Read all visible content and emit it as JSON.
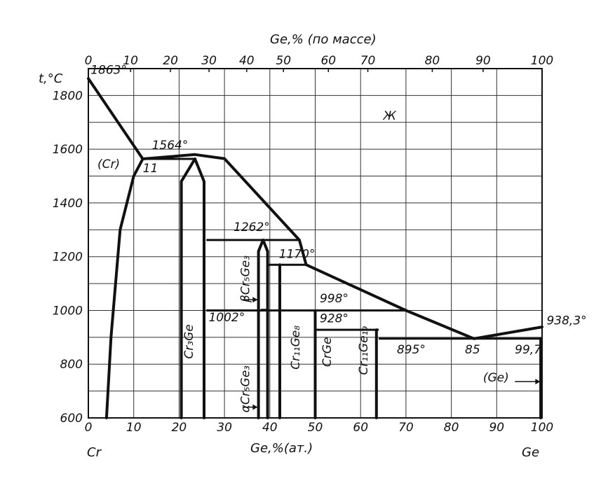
{
  "chart_data": {
    "type": "phase-diagram",
    "title": "",
    "x_bottom_label": "Ge,%(ат.)",
    "x_top_label": "Ge,% (по массе)",
    "y_label": "t,°C",
    "left_component": "Cr",
    "right_component": "Ge",
    "xlim": [
      0,
      100
    ],
    "ylim": [
      600,
      1900
    ],
    "grid": true,
    "bottom_ticks": [
      "0",
      "10",
      "20",
      "30",
      "40",
      "50",
      "60",
      "70",
      "80",
      "90",
      "100"
    ],
    "y_ticks": [
      600,
      800,
      1000,
      1200,
      1400,
      1600,
      1800
    ],
    "top_ticks": [
      {
        "label": "0",
        "at_percent": 0
      },
      {
        "label": "10",
        "at_percent": 9.3
      },
      {
        "label": "20",
        "at_percent": 18.1
      },
      {
        "label": "30",
        "at_percent": 26.6
      },
      {
        "label": "40",
        "at_percent": 34.9
      },
      {
        "label": "50",
        "at_percent": 43.0
      },
      {
        "label": "60",
        "at_percent": 52.9
      },
      {
        "label": "70",
        "at_percent": 61.6
      },
      {
        "label": "80",
        "at_percent": 75.8
      },
      {
        "label": "90",
        "at_percent": 87.0
      },
      {
        "label": "100",
        "at_percent": 100
      }
    ],
    "liquidus": [
      [
        0,
        1863
      ],
      [
        12,
        1564
      ],
      [
        23.5,
        1580
      ],
      [
        30,
        1565
      ],
      [
        46.5,
        1262
      ],
      [
        48,
        1170
      ],
      [
        70,
        1000
      ],
      [
        85,
        895
      ],
      [
        100,
        938.3
      ]
    ],
    "phase_boundaries": {
      "cr_solvus": [
        [
          4,
          600
        ],
        [
          5,
          900
        ],
        [
          7,
          1300
        ],
        [
          10,
          1500
        ],
        [
          12,
          1564
        ]
      ],
      "cr3ge_left": [
        [
          20.5,
          600
        ],
        [
          20.5,
          1480
        ],
        [
          23.5,
          1564
        ]
      ],
      "cr3ge_right": [
        [
          25.5,
          600
        ],
        [
          25.5,
          1480
        ],
        [
          23.5,
          1564
        ]
      ],
      "cr5ge3_left": [
        [
          37.5,
          600
        ],
        [
          37.5,
          1220
        ],
        [
          38.5,
          1262
        ]
      ],
      "cr5ge3_right": [
        [
          38.5,
          1262
        ],
        [
          39.5,
          1220
        ],
        [
          39.5,
          600
        ]
      ],
      "cr11ge8": [
        [
          42.2,
          600
        ],
        [
          42.2,
          1170
        ]
      ],
      "crge": [
        [
          50,
          600
        ],
        [
          50,
          998
        ]
      ],
      "cr11ge19": [
        [
          63.5,
          600
        ],
        [
          63.5,
          928
        ]
      ],
      "ge_solvus": [
        [
          99.7,
          600
        ],
        [
          99.7,
          895
        ]
      ],
      "cr_liquidus_dashed": [
        [
          0,
          1863
        ],
        [
          12,
          1564
        ]
      ]
    },
    "horizontals": [
      {
        "t": 1564,
        "x": [
          12,
          23.5
        ]
      },
      {
        "t": 1262,
        "x": [
          26,
          46.5
        ]
      },
      {
        "t": 1170,
        "x": [
          39.5,
          48
        ]
      },
      {
        "t": 1000,
        "x": [
          26,
          70
        ]
      },
      {
        "t": 928,
        "x": [
          50,
          64
        ]
      },
      {
        "t": 895,
        "x": [
          64,
          99.7
        ]
      },
      {
        "t": 1002,
        "x": [
          38,
          39.5
        ]
      }
    ],
    "annotations": [
      {
        "text": "1863°",
        "x": 0.5,
        "t": 1880
      },
      {
        "text": "1564°",
        "x": 14,
        "t": 1600
      },
      {
        "text": "11",
        "x": 12,
        "t": 1515
      },
      {
        "text": "1262°",
        "x": 32,
        "t": 1295
      },
      {
        "text": "1170°",
        "x": 42,
        "t": 1195
      },
      {
        "text": "998°",
        "x": 51,
        "t": 1030
      },
      {
        "text": "928°",
        "x": 51,
        "t": 955
      },
      {
        "text": "1002°",
        "x": 26.5,
        "t": 960
      },
      {
        "text": "895°",
        "x": 68,
        "t": 840
      },
      {
        "text": "85",
        "x": 83,
        "t": 840
      },
      {
        "text": "99,7",
        "x": 94,
        "t": 840
      },
      {
        "text": "938,3°",
        "x": 101,
        "t": 948
      }
    ],
    "phases": [
      {
        "label": "Ж",
        "x": 65,
        "t": 1710,
        "rotate": false
      },
      {
        "label": "(Cr)",
        "x": 2,
        "t": 1530,
        "rotate": false
      },
      {
        "label": "(Ge)",
        "x": 87,
        "t": 735,
        "rotate": false
      },
      {
        "label": "Cr₃Ge",
        "x": 23,
        "t": 820,
        "rotate": true
      },
      {
        "label": "αCr₅Ge₃",
        "x": 35.5,
        "t": 620,
        "rotate": true
      },
      {
        "label": "βCr₅Ge₃",
        "x": 35.5,
        "t": 1030,
        "rotate": true
      },
      {
        "label": "Cr₁₁Ge₈",
        "x": 46.5,
        "t": 780,
        "rotate": true
      },
      {
        "label": "CrGe",
        "x": 53.5,
        "t": 790,
        "rotate": true
      },
      {
        "label": "Cr₁₁Ge₁₉",
        "x": 61.5,
        "t": 760,
        "rotate": true
      }
    ]
  }
}
